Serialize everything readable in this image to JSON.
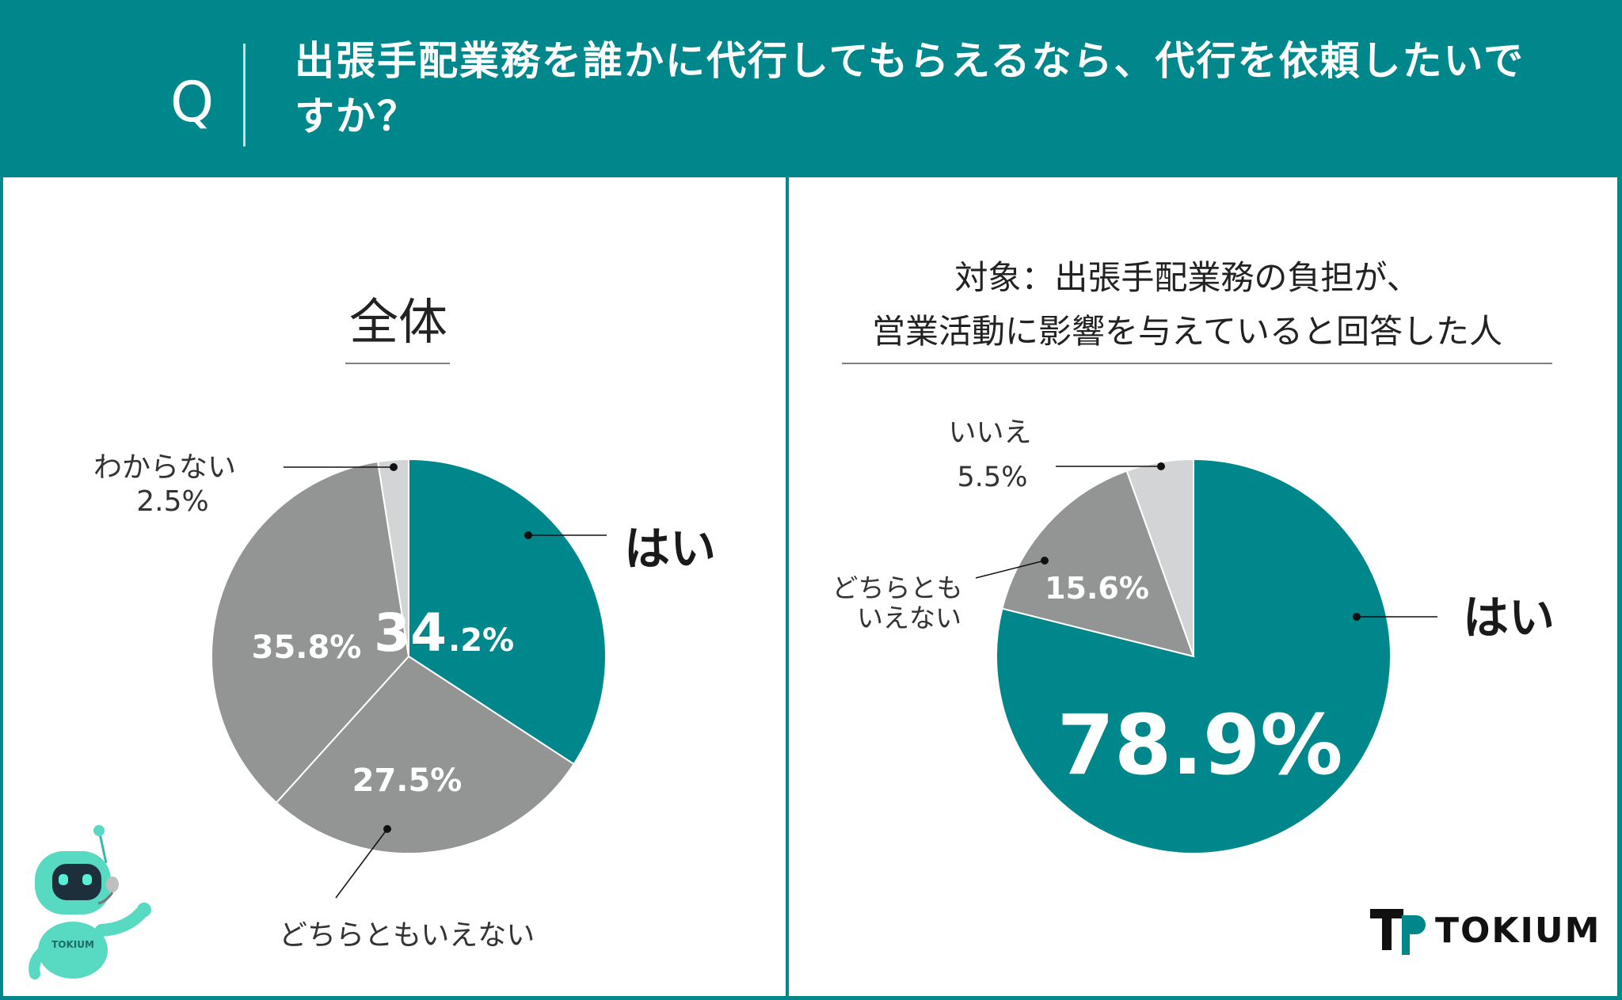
{
  "question": {
    "mark": "Q",
    "text": "出張手配業務を誰かに代行してもらえるなら、代行を依頼したいですか？"
  },
  "colors": {
    "brand": "#00878c",
    "gray": "#929594",
    "light_gray": "#d3d4d5",
    "white": "#ffffff"
  },
  "left": {
    "title": "全体",
    "labels": {
      "yes": "はい",
      "yes_pct_main": "34",
      "yes_pct_tail": ".2%",
      "neutral": "どちらともいえない",
      "neutral_pct": "27.5%",
      "no_pct": "35.8%",
      "unknown_line1": "わからない",
      "unknown_line2": "2.5%"
    }
  },
  "right": {
    "title_line1": "対象：出張手配業務の負担が、",
    "title_line2": "営業活動に影響を与えていると回答した人",
    "labels": {
      "yes": "はい",
      "yes_pct": "78.9%",
      "neutral_line1": "どちらとも",
      "neutral_line2": "いえない",
      "neutral_pct": "15.6%",
      "no_line1": "いいえ",
      "no_line2": "5.5%"
    }
  },
  "robot": {
    "badge": "TOKIUM"
  },
  "brand": {
    "name": "TOKIUM"
  },
  "chart_data": [
    {
      "type": "pie",
      "title": "全体",
      "categories": [
        "はい",
        "どちらともいえない",
        "",
        "わからない"
      ],
      "values": [
        34.2,
        27.5,
        35.8,
        2.5
      ],
      "colors": [
        "#00878c",
        "#929594",
        "#929594",
        "#d3d4d5"
      ]
    },
    {
      "type": "pie",
      "title": "対象：出張手配業務の負担が、営業活動に影響を与えていると回答した人",
      "categories": [
        "はい",
        "どちらともいえない",
        "いいえ"
      ],
      "values": [
        78.9,
        15.6,
        5.5
      ],
      "colors": [
        "#00878c",
        "#929594",
        "#d3d4d5"
      ]
    }
  ]
}
